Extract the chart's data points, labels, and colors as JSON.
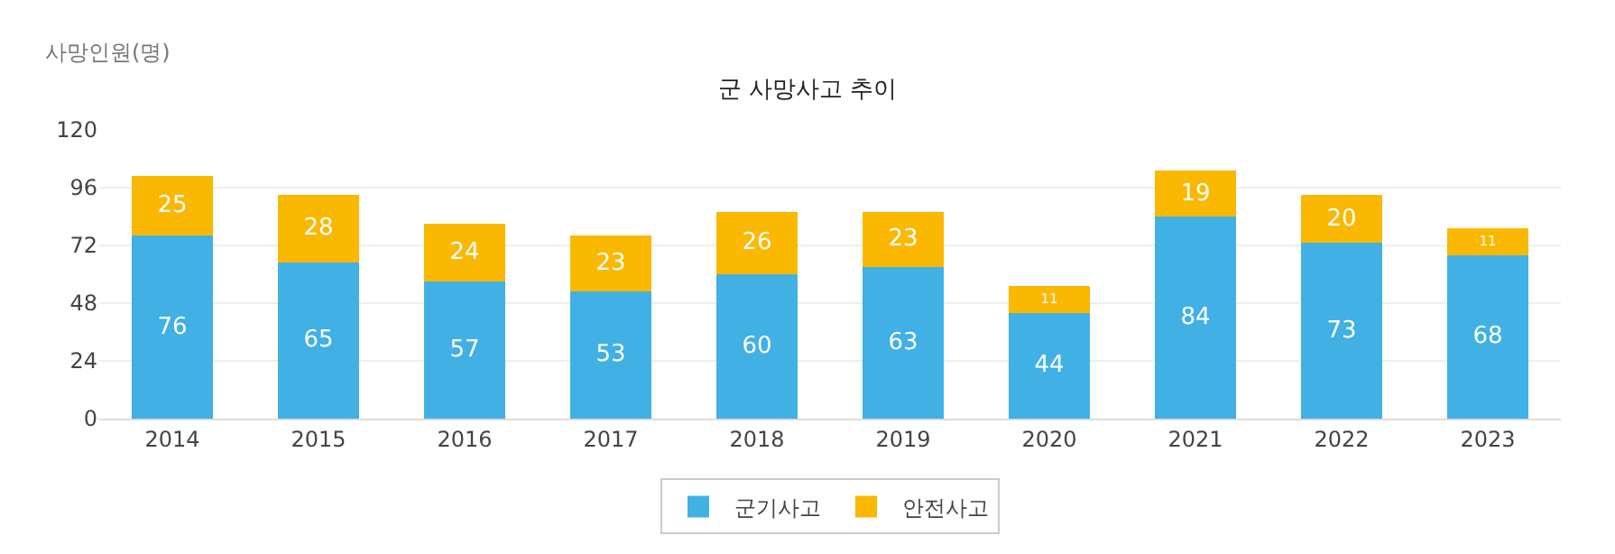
{
  "chart_data": {
    "type": "bar",
    "title": "군 사망사고 추이",
    "ylabel": "사망인원(명)",
    "categories": [
      "2014",
      "2015",
      "2016",
      "2017",
      "2018",
      "2019",
      "2020",
      "2021",
      "2022",
      "2023"
    ],
    "series": [
      {
        "name": "군기사고",
        "color": "#41b0e4",
        "values": [
          76,
          65,
          57,
          53,
          60,
          63,
          44,
          84,
          73,
          68
        ]
      },
      {
        "name": "안전사고",
        "color": "#fbb800",
        "values": [
          25,
          28,
          24,
          23,
          26,
          23,
          11,
          19,
          20,
          11
        ]
      }
    ],
    "stacked": true,
    "data_labels": true,
    "ylim": [
      0,
      120
    ],
    "yticks": [
      0,
      24,
      48,
      72,
      96,
      120
    ],
    "grid": "y",
    "legend": "bottom"
  }
}
